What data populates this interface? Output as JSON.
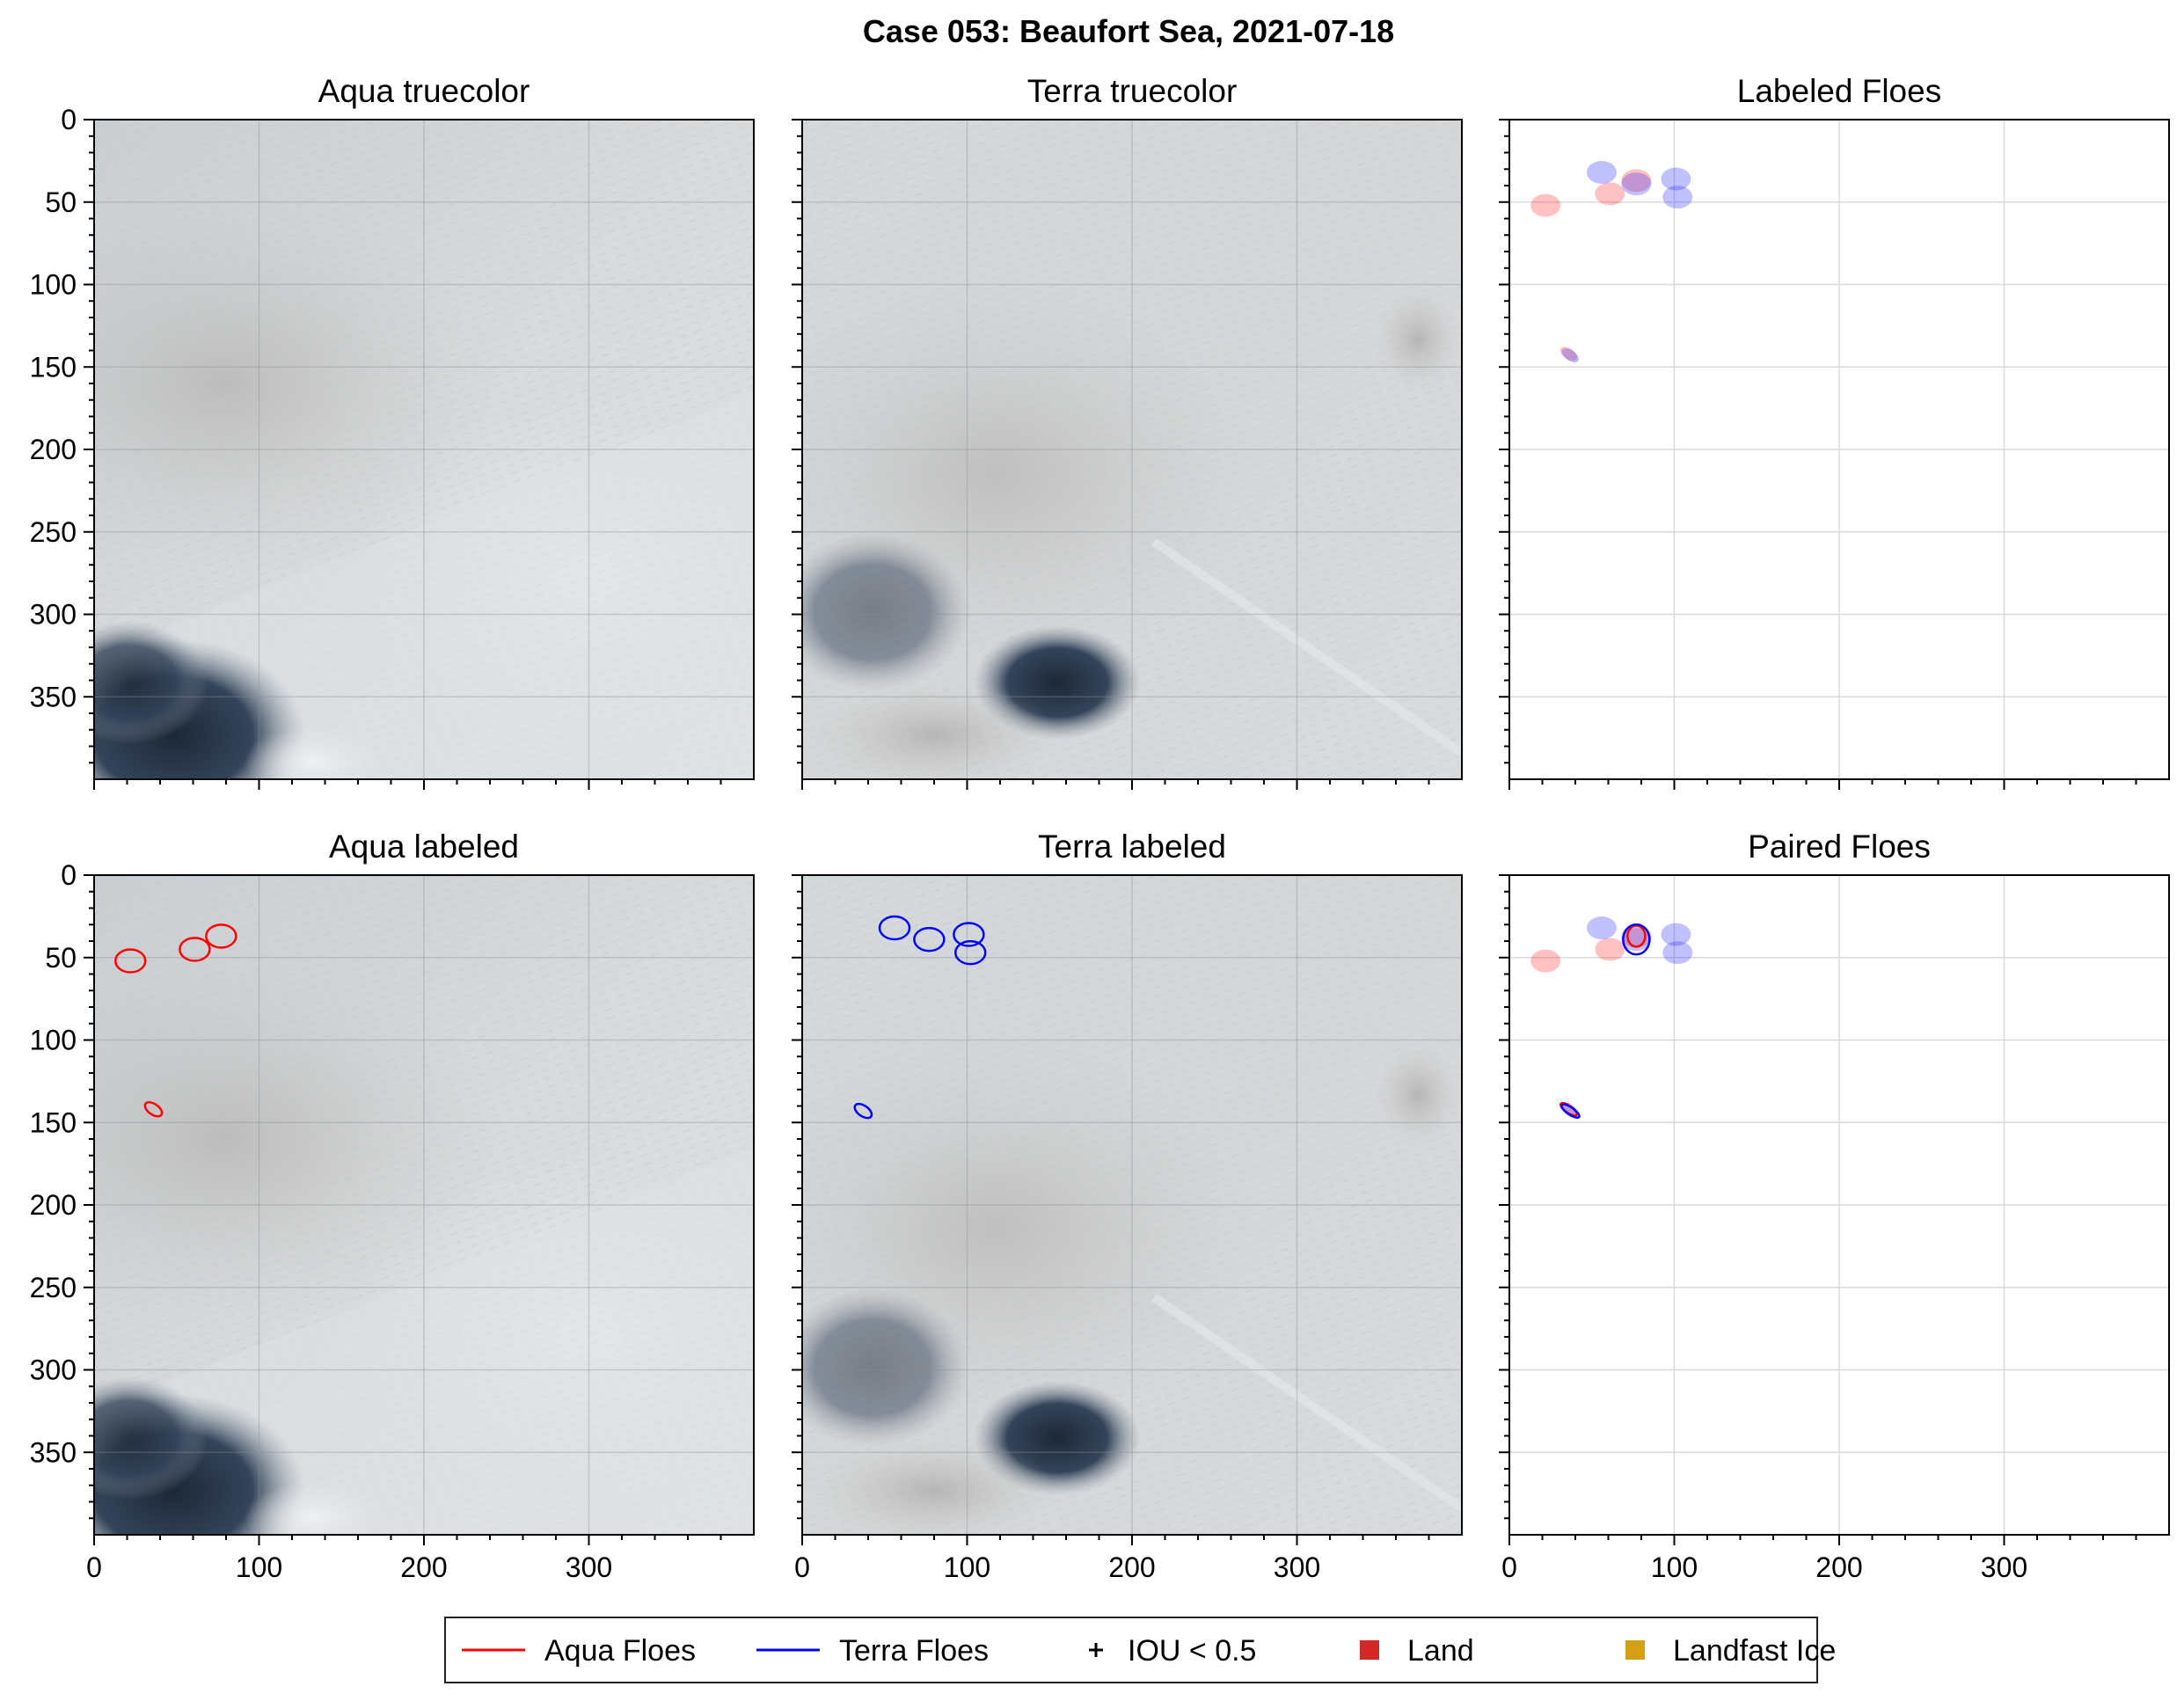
{
  "figure": {
    "title": "Case 053: Beaufort Sea, 2021-07-18"
  },
  "panels": [
    {
      "id": "aqua-truecolor",
      "title": "Aqua truecolor",
      "kind": "image",
      "variant": "aqua"
    },
    {
      "id": "terra-truecolor",
      "title": "Terra truecolor",
      "kind": "image",
      "variant": "terra"
    },
    {
      "id": "labeled-floes",
      "title": "Labeled Floes",
      "kind": "blank"
    },
    {
      "id": "aqua-labeled",
      "title": "Aqua labeled",
      "kind": "image",
      "variant": "aqua"
    },
    {
      "id": "terra-labeled",
      "title": "Terra labeled",
      "kind": "image",
      "variant": "terra"
    },
    {
      "id": "paired-floes",
      "title": "Paired Floes",
      "kind": "blank"
    }
  ],
  "axes": {
    "x_ticks": [
      "0",
      "100",
      "200",
      "300"
    ],
    "y_ticks": [
      "0",
      "50",
      "100",
      "150",
      "200",
      "250",
      "300",
      "350"
    ],
    "xlim": [
      0,
      400
    ],
    "ylim": [
      400,
      0
    ]
  },
  "legend": {
    "placement": "bottom-center",
    "items": [
      {
        "label": "Aqua Floes",
        "marker": "line",
        "color": "#ff0000"
      },
      {
        "label": "Terra Floes",
        "marker": "line",
        "color": "#0000ff"
      },
      {
        "label": "IOU < 0.5",
        "marker": "plus",
        "color": "#000000"
      },
      {
        "label": "Land",
        "marker": "square",
        "color": "#d62728"
      },
      {
        "label": "Landfast Ice",
        "marker": "square",
        "color": "#d4a017"
      }
    ]
  },
  "chart_data": {
    "type": "scatter",
    "grid": true,
    "floes": {
      "aqua": [
        {
          "x": 22,
          "y": 52
        },
        {
          "x": 61,
          "y": 45
        },
        {
          "x": 77,
          "y": 37
        },
        {
          "x": 36,
          "y": 142
        }
      ],
      "terra": [
        {
          "x": 56,
          "y": 32
        },
        {
          "x": 77,
          "y": 39
        },
        {
          "x": 101,
          "y": 36
        },
        {
          "x": 102,
          "y": 47
        },
        {
          "x": 37,
          "y": 143
        }
      ]
    }
  }
}
